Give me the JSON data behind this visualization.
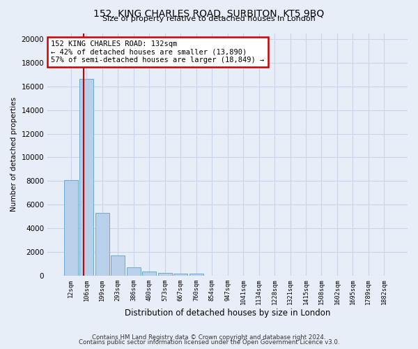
{
  "title1": "152, KING CHARLES ROAD, SURBITON, KT5 9BQ",
  "title2": "Size of property relative to detached houses in London",
  "xlabel": "Distribution of detached houses by size in London",
  "ylabel": "Number of detached properties",
  "footer1": "Contains HM Land Registry data © Crown copyright and database right 2024.",
  "footer2": "Contains public sector information licensed under the Open Government Licence v3.0.",
  "bar_labels": [
    "12sqm",
    "106sqm",
    "199sqm",
    "293sqm",
    "386sqm",
    "480sqm",
    "573sqm",
    "667sqm",
    "760sqm",
    "854sqm",
    "947sqm",
    "1041sqm",
    "1134sqm",
    "1228sqm",
    "1321sqm",
    "1415sqm",
    "1508sqm",
    "1602sqm",
    "1695sqm",
    "1789sqm",
    "1882sqm"
  ],
  "bar_values": [
    8050,
    16620,
    5300,
    1720,
    700,
    340,
    200,
    195,
    150,
    0,
    0,
    0,
    0,
    0,
    0,
    0,
    0,
    0,
    0,
    0,
    0
  ],
  "bar_color": "#b8d0ea",
  "bar_edge_color": "#6aaad4",
  "grid_color": "#c8d4e8",
  "annotation_text": "152 KING CHARLES ROAD: 132sqm\n← 42% of detached houses are smaller (13,890)\n57% of semi-detached houses are larger (18,849) →",
  "annotation_box_color": "#ffffff",
  "annotation_border_color": "#cc0000",
  "ylim": [
    0,
    20500
  ],
  "yticks": [
    0,
    2000,
    4000,
    6000,
    8000,
    10000,
    12000,
    14000,
    16000,
    18000,
    20000
  ],
  "background_color": "#e8eef8",
  "axes_background": "#e8eef8"
}
